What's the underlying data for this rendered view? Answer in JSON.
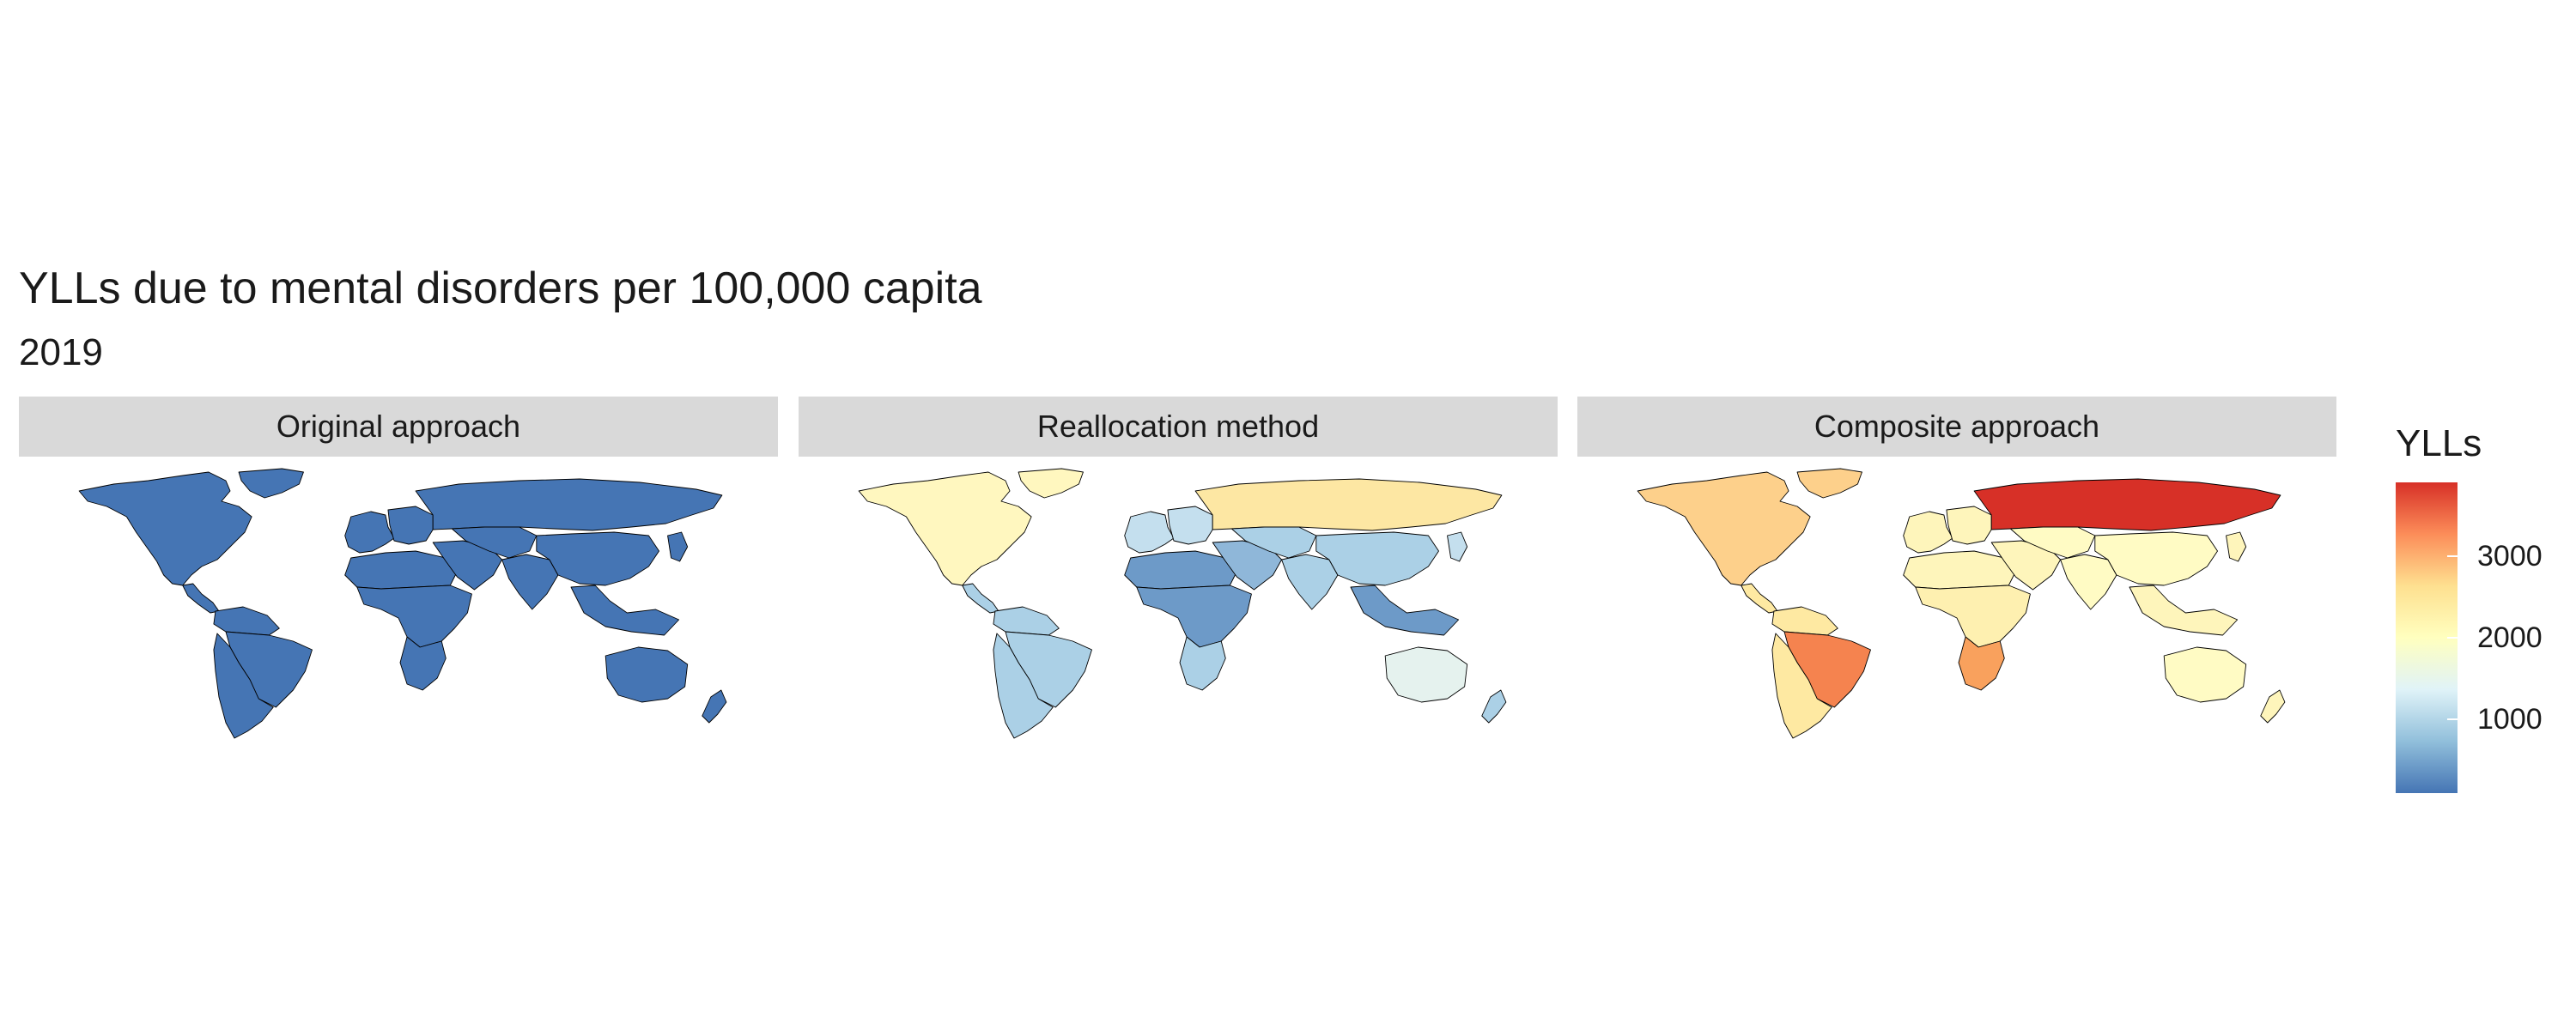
{
  "title": "YLLs due to mental disorders per 100,000 capita",
  "subtitle": "2019",
  "panels": [
    {
      "label": "Original approach"
    },
    {
      "label": "Reallocation method"
    },
    {
      "label": "Composite approach"
    }
  ],
  "legend": {
    "title": "YLLs",
    "ticks": [
      "3000",
      "2000",
      "1000"
    ],
    "tick_values": [
      3000,
      2000,
      1000
    ],
    "range": [
      100,
      3900
    ],
    "palette": [
      "#4575b4",
      "#91bfdb",
      "#e0f3f8",
      "#ffffbf",
      "#fee090",
      "#fc8d59",
      "#d73027"
    ]
  },
  "map_data": {
    "regions": [
      "north-america",
      "greenland",
      "central-america",
      "south-america-north",
      "brazil",
      "south-america-south",
      "europe-west",
      "europe-east",
      "russia",
      "north-africa",
      "sub-saharan-africa",
      "southern-africa",
      "middle-east",
      "central-asia",
      "south-asia",
      "china",
      "southeast-asia",
      "japan",
      "australia",
      "new-zealand"
    ],
    "colors": {
      "original": {
        "north-america": "#4575b4",
        "greenland": "#4575b4",
        "central-america": "#4575b4",
        "south-america-north": "#4575b4",
        "brazil": "#4575b4",
        "south-america-south": "#4575b4",
        "europe-west": "#4575b4",
        "europe-east": "#4575b4",
        "russia": "#4575b4",
        "north-africa": "#4575b4",
        "sub-saharan-africa": "#4575b4",
        "southern-africa": "#4575b4",
        "middle-east": "#4575b4",
        "central-asia": "#4575b4",
        "south-asia": "#4575b4",
        "china": "#4575b4",
        "southeast-asia": "#4575b4",
        "japan": "#4575b4",
        "australia": "#4575b4",
        "new-zealand": "#4575b4"
      },
      "reallocation": {
        "north-america": "#fff7bf",
        "greenland": "#fff7bf",
        "central-america": "#abd0e6",
        "south-america-north": "#abd0e6",
        "brazil": "#abd0e6",
        "south-america-south": "#abd0e6",
        "europe-west": "#c4dfee",
        "europe-east": "#c4dfee",
        "russia": "#fde7a3",
        "north-africa": "#6d9ac8",
        "sub-saharan-africa": "#6d9ac8",
        "southern-africa": "#abd0e6",
        "middle-east": "#8fb7d9",
        "central-asia": "#abd0e6",
        "south-asia": "#abd0e6",
        "china": "#abd0e6",
        "southeast-asia": "#6d9ac8",
        "japan": "#c4dfee",
        "australia": "#e5f2ee",
        "new-zealand": "#abd0e6"
      },
      "composite": {
        "north-america": "#fdd08b",
        "greenland": "#fdd08b",
        "central-america": "#fee9a2",
        "south-america-north": "#fee9a2",
        "brazil": "#f5834f",
        "south-america-south": "#fee9a2",
        "europe-west": "#fef5bb",
        "europe-east": "#fef5bb",
        "russia": "#d73027",
        "north-africa": "#fef5bb",
        "sub-saharan-africa": "#fef0b0",
        "southern-africa": "#f9a15d",
        "middle-east": "#fef5bb",
        "central-asia": "#fffbc4",
        "south-asia": "#fffbc4",
        "china": "#fffbc4",
        "southeast-asia": "#fef5bb",
        "japan": "#fef5bb",
        "australia": "#fffbc4",
        "new-zealand": "#fef5bb"
      }
    }
  }
}
